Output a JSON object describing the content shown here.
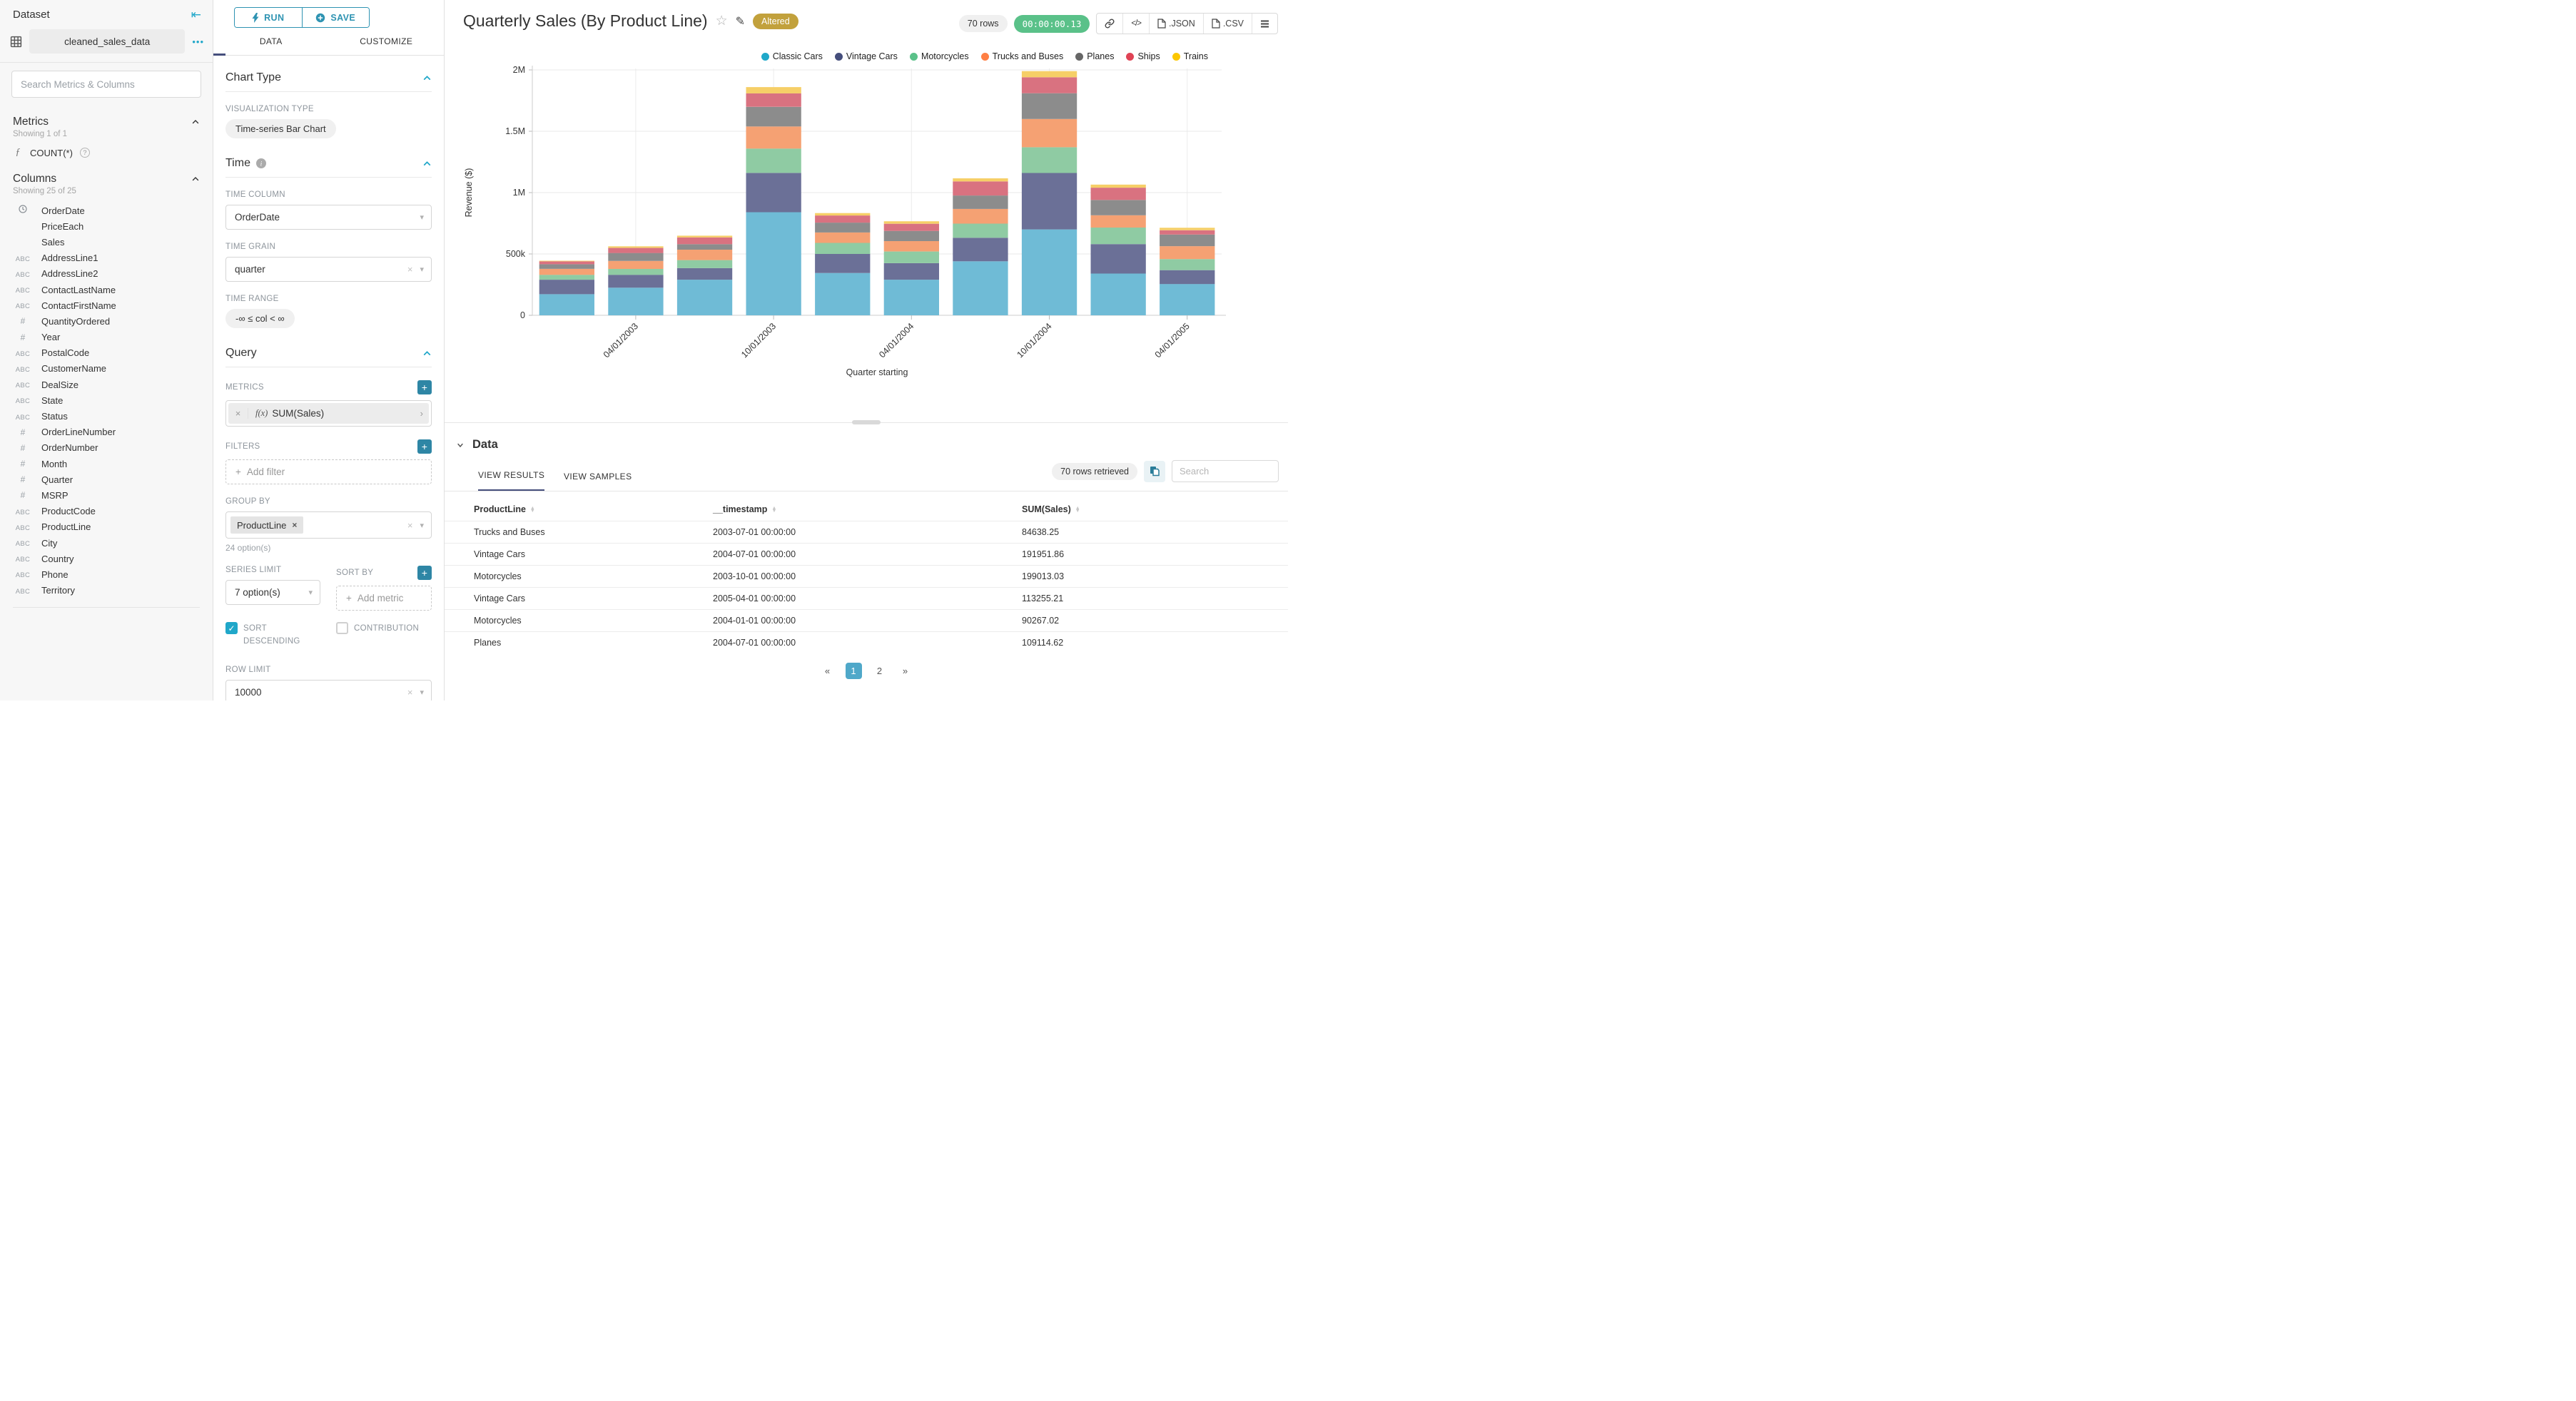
{
  "colors": {
    "primary": "#20A7C9",
    "primary_dark": "#2E86A5",
    "tab_active": "#454E7C",
    "altered_bg": "#C2A13C",
    "timer_bg": "#5AC189",
    "pagination_active": "#4FA8C9"
  },
  "icons": {
    "collapse": "⇤",
    "dots": "•••",
    "fx": "ƒ",
    "help": "?",
    "star": "☆",
    "edit": "✎",
    "code": "</>",
    "prev": "«",
    "next": "»",
    "check": "✓",
    "clear": "×",
    "caret": "▾",
    "chip_x": "×",
    "plus": "+",
    "abc": "ABC",
    "hash": "#",
    "fx_paren": "f(x)",
    "metric_arrow": "›",
    "sort_up": "▲",
    "sort_down": "▼"
  },
  "sidebar": {
    "title": "Dataset",
    "dataset_name": "cleaned_sales_data",
    "search_placeholder": "Search Metrics & Columns",
    "metrics_header": "Metrics",
    "metrics_showing": "Showing 1 of 1",
    "metric": "COUNT(*)",
    "columns_header": "Columns",
    "columns_showing": "Showing 25 of 25",
    "columns": [
      {
        "type": "time",
        "name": "OrderDate"
      },
      {
        "type": "",
        "name": "PriceEach"
      },
      {
        "type": "",
        "name": "Sales"
      },
      {
        "type": "abc",
        "name": "AddressLine1"
      },
      {
        "type": "abc",
        "name": "AddressLine2"
      },
      {
        "type": "abc",
        "name": "ContactLastName"
      },
      {
        "type": "abc",
        "name": "ContactFirstName"
      },
      {
        "type": "num",
        "name": "QuantityOrdered"
      },
      {
        "type": "num",
        "name": "Year"
      },
      {
        "type": "abc",
        "name": "PostalCode"
      },
      {
        "type": "abc",
        "name": "CustomerName"
      },
      {
        "type": "abc",
        "name": "DealSize"
      },
      {
        "type": "abc",
        "name": "State"
      },
      {
        "type": "abc",
        "name": "Status"
      },
      {
        "type": "num",
        "name": "OrderLineNumber"
      },
      {
        "type": "num",
        "name": "OrderNumber"
      },
      {
        "type": "num",
        "name": "Month"
      },
      {
        "type": "num",
        "name": "Quarter"
      },
      {
        "type": "num",
        "name": "MSRP"
      },
      {
        "type": "abc",
        "name": "ProductCode"
      },
      {
        "type": "abc",
        "name": "ProductLine"
      },
      {
        "type": "abc",
        "name": "City"
      },
      {
        "type": "abc",
        "name": "Country"
      },
      {
        "type": "abc",
        "name": "Phone"
      },
      {
        "type": "abc",
        "name": "Territory"
      }
    ]
  },
  "control_panel": {
    "run_label": "RUN",
    "save_label": "SAVE",
    "tabs": [
      {
        "label": "DATA",
        "active": true
      },
      {
        "label": "CUSTOMIZE",
        "active": false
      }
    ],
    "chart_type": {
      "title": "Chart Type",
      "viz_label": "VISUALIZATION TYPE",
      "viz_value": "Time-series Bar Chart"
    },
    "time": {
      "title": "Time",
      "time_column_label": "TIME COLUMN",
      "time_column": "OrderDate",
      "time_grain_label": "TIME GRAIN",
      "time_grain": "quarter",
      "time_range_label": "TIME RANGE",
      "time_range": "-∞ ≤ col < ∞"
    },
    "query": {
      "title": "Query",
      "metrics_label": "METRICS",
      "metric_value": "SUM(Sales)",
      "filters_label": "FILTERS",
      "add_filter": "Add filter",
      "group_by_label": "GROUP BY",
      "group_by_chip": "ProductLine",
      "options_hint": "24 option(s)",
      "series_limit_label": "SERIES LIMIT",
      "series_limit_value": "7 option(s)",
      "sort_by_label": "SORT BY",
      "add_metric": "Add metric",
      "sort_descending_label": "SORT DESCENDING",
      "contribution_label": "CONTRIBUTION",
      "row_limit_label": "ROW LIMIT",
      "row_limit_value": "10000"
    }
  },
  "header": {
    "title": "Quarterly Sales (By Product Line)",
    "altered_badge": "Altered",
    "rows_badge": "70 rows",
    "timer": "00:00:00.13",
    "export_json": ".JSON",
    "export_csv": ".CSV"
  },
  "chart_data": {
    "type": "bar",
    "stacked": true,
    "xlabel": "Quarter starting",
    "ylabel": "Revenue ($)",
    "ylim": [
      0,
      2000000
    ],
    "grid": true,
    "legend_position": "top-right",
    "x": [
      "2003-01-01",
      "2003-04-01",
      "2003-07-01",
      "2003-10-01",
      "2004-01-01",
      "2004-04-01",
      "2004-07-01",
      "2004-10-01",
      "2005-01-01",
      "2005-04-01"
    ],
    "x_tick_labels": [
      {
        "index": 1,
        "label": "04/01/2003"
      },
      {
        "index": 3,
        "label": "10/01/2003"
      },
      {
        "index": 5,
        "label": "04/01/2004"
      },
      {
        "index": 7,
        "label": "10/01/2004"
      },
      {
        "index": 9,
        "label": "04/01/2005"
      }
    ],
    "y_ticks": [
      {
        "value": 0,
        "label": "0"
      },
      {
        "value": 500000,
        "label": "500k"
      },
      {
        "value": 1000000,
        "label": "1M"
      },
      {
        "value": 1500000,
        "label": "1.5M"
      },
      {
        "value": 2000000,
        "label": "2M"
      }
    ],
    "series": [
      {
        "name": "Classic Cars",
        "legend_color": "#1FA8C9",
        "bar_color": "#6FBBD6",
        "values": [
          172000,
          225000,
          290000,
          840000,
          345000,
          290000,
          440000,
          700000,
          340000,
          255000
        ]
      },
      {
        "name": "Vintage Cars",
        "legend_color": "#454E7C",
        "bar_color": "#6B7097",
        "values": [
          118000,
          105000,
          95000,
          320000,
          155000,
          135000,
          191951.86,
          460000,
          240000,
          113255.21
        ]
      },
      {
        "name": "Motorcycles",
        "legend_color": "#5AC189",
        "bar_color": "#8FCBA3",
        "values": [
          40000,
          48000,
          65000,
          199013.03,
          90267.02,
          95000,
          115000,
          210000,
          135000,
          90000
        ]
      },
      {
        "name": "Trucks and Buses",
        "legend_color": "#FF7F44",
        "bar_color": "#F5A173",
        "values": [
          48000,
          65000,
          84638.25,
          180000,
          85000,
          85000,
          120000,
          230000,
          100000,
          105000
        ]
      },
      {
        "name": "Planes",
        "legend_color": "#666666",
        "bar_color": "#8C8C8C",
        "values": [
          38000,
          65000,
          45000,
          160000,
          80000,
          83000,
          109114.62,
          210000,
          125000,
          95000
        ]
      },
      {
        "name": "Ships",
        "legend_color": "#E04355",
        "bar_color": "#D97280",
        "values": [
          24000,
          41000,
          55000,
          110000,
          58000,
          58000,
          115000,
          130000,
          100000,
          35000
        ]
      },
      {
        "name": "Trains",
        "legend_color": "#FCC700",
        "bar_color": "#F6CF67",
        "values": [
          5000,
          13000,
          14000,
          51000,
          20000,
          20000,
          25000,
          50000,
          25000,
          20000
        ]
      }
    ]
  },
  "data_panel": {
    "title": "Data",
    "tabs": [
      {
        "label": "VIEW RESULTS",
        "active": true
      },
      {
        "label": "VIEW SAMPLES",
        "active": false
      }
    ],
    "rows_retrieved": "70 rows retrieved",
    "search_placeholder": "Search",
    "columns": [
      "ProductLine",
      "__timestamp",
      "SUM(Sales)"
    ],
    "rows": [
      [
        "Trucks and Buses",
        "2003-07-01 00:00:00",
        "84638.25"
      ],
      [
        "Vintage Cars",
        "2004-07-01 00:00:00",
        "191951.86"
      ],
      [
        "Motorcycles",
        "2003-10-01 00:00:00",
        "199013.03"
      ],
      [
        "Vintage Cars",
        "2005-04-01 00:00:00",
        "113255.21"
      ],
      [
        "Motorcycles",
        "2004-01-01 00:00:00",
        "90267.02"
      ],
      [
        "Planes",
        "2004-07-01 00:00:00",
        "109114.62"
      ]
    ],
    "pagination": {
      "prev": "«",
      "pages": [
        "1",
        "2"
      ],
      "active": "1",
      "next": "»"
    }
  }
}
